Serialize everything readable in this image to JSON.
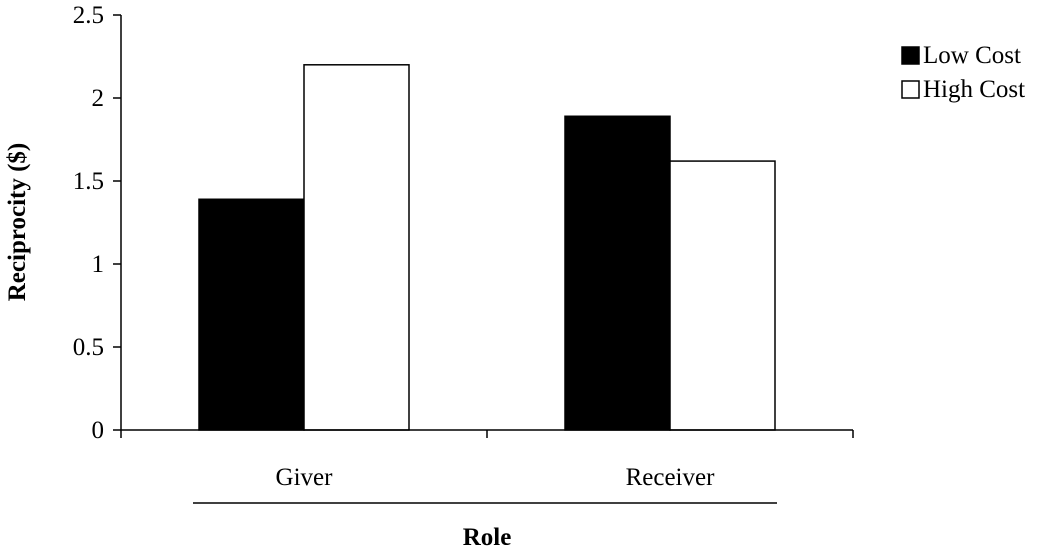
{
  "chart_data": {
    "type": "bar",
    "title": "",
    "xlabel": "Role",
    "ylabel": "Reciprocity ($)",
    "categories": [
      "Giver",
      "Receiver"
    ],
    "series": [
      {
        "name": "Low Cost",
        "values": [
          1.39,
          1.89
        ],
        "color": "#000000"
      },
      {
        "name": "High Cost",
        "values": [
          2.2,
          1.62
        ],
        "color": "#ffffff"
      }
    ],
    "ylim": [
      0,
      2.5
    ],
    "yticks": [
      0,
      0.5,
      1,
      1.5,
      2,
      2.5
    ],
    "ytick_labels": [
      "0",
      "0.5",
      "1",
      "1.5",
      "2",
      "2.5"
    ],
    "grid": false,
    "legend_position": "top-right"
  }
}
